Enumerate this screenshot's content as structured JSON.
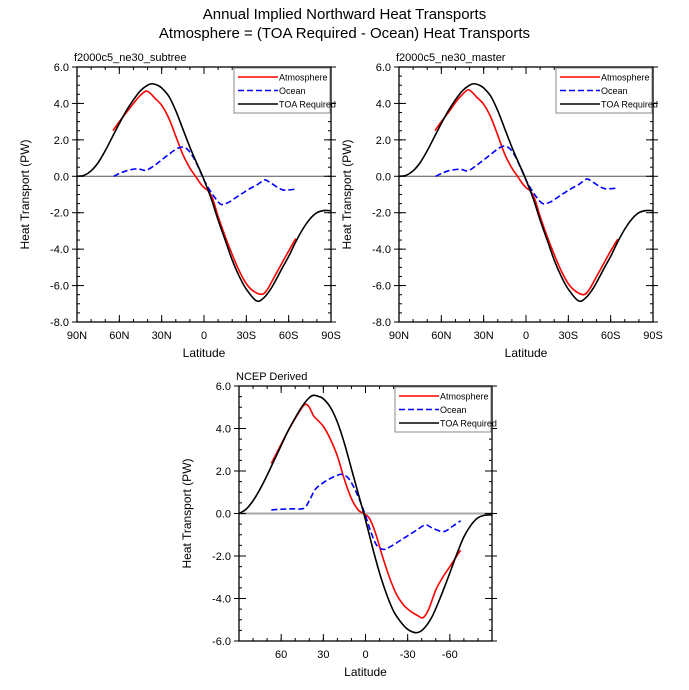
{
  "figure": {
    "title_line1": "Annual Implied Northward Heat Transports",
    "title_line2": "Atmosphere = (TOA Required - Ocean) Heat Transports"
  },
  "chart_data": [
    {
      "type": "line",
      "panel": "top-left",
      "title": "f2000c5_ne30_subtree",
      "xlabel": "Latitude",
      "ylabel": "Heat Transport (PW)",
      "xlim": [
        90,
        -90
      ],
      "ylim": [
        -8,
        6
      ],
      "xticks": [
        90,
        60,
        30,
        0,
        -30,
        -60,
        -90
      ],
      "xtick_labels": [
        "90N",
        "60N",
        "30N",
        "0",
        "30S",
        "60S",
        "90S"
      ],
      "yticks": [
        6,
        4,
        2,
        0,
        -2,
        -4,
        -6,
        -8
      ],
      "ytick_labels": [
        "6.0",
        "4.0",
        "2.0",
        "0.0",
        "-2.0",
        "-4.0",
        "-6.0",
        "-8.0"
      ],
      "zero_line": true,
      "legend_position": "top-right",
      "series": [
        {
          "name": "Atmosphere",
          "color": "#ff0000",
          "dash": "solid",
          "x": [
            64.5,
            60,
            55,
            50,
            45,
            41,
            38,
            35,
            30,
            25,
            20,
            15,
            10,
            6,
            3,
            0,
            -3,
            -6,
            -10,
            -15,
            -20,
            -25,
            -30,
            -35,
            -41,
            -45,
            -50,
            -55,
            -60,
            -65
          ],
          "y": [
            2.5,
            3.0,
            3.5,
            4.0,
            4.45,
            4.68,
            4.55,
            4.3,
            3.9,
            3.2,
            2.2,
            1.2,
            0.45,
            0.0,
            -0.35,
            -0.62,
            -0.8,
            -1.2,
            -2.2,
            -3.3,
            -4.3,
            -5.2,
            -5.9,
            -6.3,
            -6.48,
            -6.2,
            -5.5,
            -4.8,
            -4.1,
            -3.42
          ]
        },
        {
          "name": "Ocean",
          "color": "#0000ff",
          "dash": "dashed",
          "x": [
            64,
            60,
            55,
            49,
            45,
            41,
            35,
            30,
            25,
            20,
            16,
            12,
            8,
            4,
            0,
            -4,
            -8,
            -12,
            -17,
            -22,
            -27,
            -32,
            -38,
            -43,
            -47,
            -52,
            -56,
            -60,
            -64.5
          ],
          "y": [
            0.0,
            0.15,
            0.3,
            0.4,
            0.38,
            0.33,
            0.6,
            0.9,
            1.2,
            1.48,
            1.6,
            1.5,
            1.1,
            0.5,
            -0.2,
            -0.75,
            -1.2,
            -1.54,
            -1.45,
            -1.2,
            -0.95,
            -0.7,
            -0.45,
            -0.2,
            -0.35,
            -0.6,
            -0.75,
            -0.75,
            -0.71
          ]
        },
        {
          "name": "TOA Required",
          "color": "#000000",
          "dash": "solid",
          "x": [
            90,
            85,
            80,
            75,
            70,
            65,
            60,
            55,
            50,
            45,
            40,
            37,
            33,
            30,
            25,
            20,
            15,
            10,
            5,
            1,
            -5,
            -10,
            -15,
            -20,
            -25,
            -30,
            -37,
            -42,
            -48,
            -55,
            -60,
            -65,
            -70,
            -75,
            -80,
            -85,
            -90
          ],
          "y": [
            0.0,
            0.05,
            0.3,
            0.75,
            1.4,
            2.15,
            2.9,
            3.6,
            4.2,
            4.7,
            5.0,
            5.08,
            5.0,
            4.85,
            4.4,
            3.6,
            2.6,
            1.6,
            0.7,
            0.0,
            -1.2,
            -2.4,
            -3.5,
            -4.6,
            -5.5,
            -6.2,
            -6.83,
            -6.7,
            -6.1,
            -5.1,
            -4.4,
            -3.6,
            -2.9,
            -2.35,
            -2.0,
            -1.88,
            -1.89
          ]
        }
      ]
    },
    {
      "type": "line",
      "panel": "top-right",
      "title": "f2000c5_ne30_master",
      "xlabel": "Latitude",
      "ylabel": "Heat Transport (PW)",
      "xlim": [
        90,
        -90
      ],
      "ylim": [
        -8,
        6
      ],
      "xticks": [
        90,
        60,
        30,
        0,
        -30,
        -60,
        -90
      ],
      "xtick_labels": [
        "90N",
        "60N",
        "30N",
        "0",
        "30S",
        "60S",
        "90S"
      ],
      "yticks": [
        6,
        4,
        2,
        0,
        -2,
        -4,
        -6,
        -8
      ],
      "ytick_labels": [
        "6.0",
        "4.0",
        "2.0",
        "0.0",
        "-2.0",
        "-4.0",
        "-6.0",
        "-8.0"
      ],
      "zero_line": true,
      "legend_position": "top-right",
      "series": [
        {
          "name": "Atmosphere",
          "color": "#ff0000",
          "dash": "solid",
          "x": [
            64.5,
            60,
            55,
            50,
            45,
            41,
            38,
            35,
            30,
            25,
            20,
            15,
            10,
            6,
            3,
            0,
            -3,
            -6,
            -10,
            -15,
            -20,
            -25,
            -30,
            -35,
            -41,
            -45,
            -50,
            -55,
            -60,
            -65
          ],
          "y": [
            2.5,
            3.0,
            3.5,
            4.05,
            4.5,
            4.75,
            4.6,
            4.35,
            3.95,
            3.25,
            2.25,
            1.2,
            0.45,
            0.0,
            -0.35,
            -0.62,
            -0.8,
            -1.2,
            -2.2,
            -3.3,
            -4.3,
            -5.2,
            -5.9,
            -6.3,
            -6.5,
            -6.2,
            -5.5,
            -4.8,
            -4.1,
            -3.45
          ]
        },
        {
          "name": "Ocean",
          "color": "#0000ff",
          "dash": "dashed",
          "x": [
            64,
            60,
            55,
            49,
            45,
            41,
            35,
            30,
            25,
            20,
            16,
            12,
            8,
            4,
            0,
            -4,
            -8,
            -12,
            -17,
            -22,
            -27,
            -32,
            -38,
            -43,
            -47,
            -52,
            -56,
            -60,
            -64.5
          ],
          "y": [
            0.0,
            0.15,
            0.3,
            0.38,
            0.36,
            0.3,
            0.6,
            0.9,
            1.2,
            1.5,
            1.65,
            1.55,
            1.15,
            0.5,
            -0.2,
            -0.75,
            -1.2,
            -1.5,
            -1.42,
            -1.18,
            -0.92,
            -0.68,
            -0.42,
            -0.15,
            -0.3,
            -0.55,
            -0.68,
            -0.68,
            -0.65
          ]
        },
        {
          "name": "TOA Required",
          "color": "#000000",
          "dash": "solid",
          "x": [
            90,
            85,
            80,
            75,
            70,
            65,
            60,
            55,
            50,
            45,
            40,
            37,
            33,
            30,
            25,
            20,
            15,
            10,
            5,
            1,
            -5,
            -10,
            -15,
            -20,
            -25,
            -30,
            -37,
            -42,
            -48,
            -55,
            -60,
            -65,
            -70,
            -75,
            -80,
            -85,
            -90
          ],
          "y": [
            0.0,
            0.05,
            0.3,
            0.75,
            1.4,
            2.15,
            2.9,
            3.6,
            4.2,
            4.7,
            5.0,
            5.08,
            5.0,
            4.85,
            4.4,
            3.6,
            2.6,
            1.6,
            0.7,
            0.0,
            -1.2,
            -2.4,
            -3.5,
            -4.6,
            -5.5,
            -6.2,
            -6.83,
            -6.7,
            -6.1,
            -5.1,
            -4.4,
            -3.6,
            -2.9,
            -2.35,
            -2.0,
            -1.88,
            -1.89
          ]
        }
      ]
    },
    {
      "type": "line",
      "panel": "bottom-center",
      "title": "NCEP Derived",
      "xlabel": "Latitude",
      "ylabel": "Heat Transport (PW)",
      "xlim": [
        90,
        -90
      ],
      "ylim": [
        -6,
        6
      ],
      "xticks": [
        60,
        30,
        0,
        -30,
        -60
      ],
      "xtick_labels": [
        "60",
        "30",
        "0",
        "-30",
        "-60"
      ],
      "yticks": [
        6,
        4,
        2,
        0,
        -2,
        -4,
        -6
      ],
      "ytick_labels": [
        "6.0",
        "4.0",
        "2.0",
        "0.0",
        "-2.0",
        "-4.0",
        "-6.0"
      ],
      "zero_line": true,
      "legend_position": "top-right",
      "series": [
        {
          "name": "Atmosphere",
          "color": "#ff0000",
          "dash": "solid",
          "x": [
            67,
            62,
            57,
            52,
            47,
            43,
            40,
            37,
            34.6,
            30,
            25,
            20,
            15,
            10,
            5,
            1,
            -3,
            -7,
            -12,
            -17,
            -22,
            -27,
            -32,
            -37,
            -41,
            -45,
            -50,
            -55,
            -60,
            -67.7
          ],
          "y": [
            2.36,
            3.0,
            3.65,
            4.25,
            4.8,
            5.14,
            5.0,
            4.6,
            4.43,
            4.1,
            3.5,
            2.7,
            1.6,
            0.7,
            0.15,
            0.0,
            -0.25,
            -0.9,
            -2.0,
            -3.0,
            -3.8,
            -4.3,
            -4.6,
            -4.8,
            -4.9,
            -4.5,
            -3.6,
            -3.0,
            -2.5,
            -1.72
          ]
        },
        {
          "name": "Ocean",
          "color": "#0000ff",
          "dash": "dashed",
          "x": [
            67,
            60,
            52,
            44,
            40,
            35.7,
            30,
            25,
            20,
            16.3,
            12,
            8,
            4,
            0,
            -4,
            -8,
            -13,
            -18,
            -24,
            -30,
            -36,
            -42.6,
            -48,
            -55.6,
            -62,
            -67.7
          ],
          "y": [
            0.17,
            0.2,
            0.22,
            0.24,
            0.6,
            1.14,
            1.45,
            1.65,
            1.8,
            1.84,
            1.65,
            1.2,
            0.6,
            -0.1,
            -0.9,
            -1.5,
            -1.69,
            -1.55,
            -1.3,
            -1.05,
            -0.8,
            -0.54,
            -0.7,
            -0.85,
            -0.6,
            -0.34
          ]
        },
        {
          "name": "TOA Required",
          "color": "#000000",
          "dash": "solid",
          "x": [
            90,
            85,
            80,
            75,
            70,
            65,
            60,
            55,
            50,
            45,
            40,
            37,
            33,
            30,
            25,
            20,
            15,
            10,
            5,
            0,
            -5,
            -10,
            -15,
            -20,
            -25,
            -30,
            -36,
            -41,
            -47,
            -53,
            -60,
            -65,
            -70,
            -75,
            -80,
            -85,
            -90
          ],
          "y": [
            0.0,
            0.2,
            0.6,
            1.15,
            1.8,
            2.5,
            3.2,
            3.9,
            4.5,
            5.05,
            5.45,
            5.56,
            5.5,
            5.4,
            5.0,
            4.3,
            3.3,
            2.1,
            0.9,
            -0.3,
            -1.6,
            -2.8,
            -3.8,
            -4.6,
            -5.1,
            -5.45,
            -5.61,
            -5.45,
            -4.9,
            -4.0,
            -2.8,
            -1.9,
            -1.1,
            -0.55,
            -0.2,
            -0.08,
            -0.07
          ]
        }
      ]
    }
  ]
}
